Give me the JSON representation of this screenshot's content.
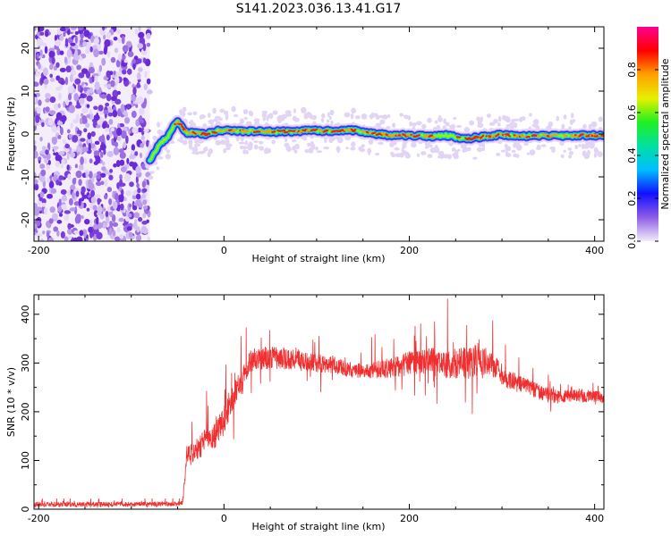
{
  "title": "S141.2023.036.13.41.G17",
  "chart_data": [
    {
      "type": "heatmap",
      "name": "spectrogram",
      "xlabel": "Height of straight line (km)",
      "ylabel": "Frequency (Hz)",
      "xlim": [
        -205,
        410
      ],
      "ylim": [
        -25,
        25
      ],
      "xticks": [
        -200,
        0,
        200,
        400
      ],
      "yticks": [
        -20,
        -10,
        0,
        10,
        20
      ],
      "grid": false,
      "noise_region_x": [
        -205,
        -80
      ],
      "signal_track": {
        "x": [
          -80,
          -75,
          -70,
          -65,
          -60,
          -55,
          -50,
          -45,
          -40,
          -30,
          -20,
          -10,
          0,
          20,
          40,
          60,
          80,
          100,
          120,
          140,
          160,
          180,
          200,
          220,
          240,
          260,
          280,
          300,
          320,
          340,
          360,
          380,
          400,
          410
        ],
        "y": [
          -6,
          -4.5,
          -2.5,
          -1.5,
          -0.5,
          1.5,
          3,
          1.5,
          0.3,
          0.2,
          0,
          0.5,
          1,
          0.7,
          0.6,
          0.5,
          0.7,
          0.8,
          0.6,
          0.9,
          0.2,
          -0.4,
          -0.3,
          -0.6,
          -0.3,
          -1.2,
          -0.6,
          -0.2,
          -0.6,
          -0.4,
          -0.5,
          -0.4,
          -0.3,
          -0.2
        ]
      },
      "colorbar": {
        "label": "Normalized spectral amplitude",
        "ticks": [
          0.0,
          0.2,
          0.4,
          0.6,
          0.8
        ],
        "range": [
          0,
          1
        ],
        "colors": [
          "#f2ecf9",
          "#8e5de6",
          "#1010ff",
          "#00bfff",
          "#00e0a0",
          "#20f020",
          "#e8f000",
          "#ffa000",
          "#ff0000",
          "#ff0090"
        ]
      }
    },
    {
      "type": "line",
      "name": "snr",
      "xlabel": "Height of straight line (km)",
      "ylabel": "SNR (10 * v/v)",
      "xlim": [
        -205,
        410
      ],
      "ylim": [
        0,
        440
      ],
      "xticks": [
        -200,
        0,
        200,
        400
      ],
      "yticks": [
        0,
        100,
        200,
        300,
        400
      ],
      "grid": false,
      "color": "#f03030",
      "envelope": {
        "x": [
          -205,
          -160,
          -120,
          -80,
          -45,
          -42,
          -40,
          -35,
          -30,
          -25,
          -20,
          -15,
          -10,
          -5,
          0,
          5,
          10,
          15,
          20,
          25,
          30,
          40,
          60,
          80,
          100,
          120,
          140,
          160,
          180,
          200,
          220,
          240,
          260,
          280,
          295,
          300,
          310,
          320,
          330,
          340,
          360,
          380,
          400,
          410
        ],
        "y": [
          10,
          10,
          10,
          10,
          12,
          60,
          120,
          110,
          120,
          130,
          150,
          140,
          150,
          170,
          180,
          210,
          230,
          250,
          265,
          290,
          305,
          310,
          310,
          305,
          300,
          295,
          285,
          285,
          290,
          300,
          305,
          300,
          300,
          305,
          290,
          270,
          265,
          255,
          250,
          240,
          230,
          235,
          230,
          230
        ]
      },
      "noise_amplitude": {
        "x": [
          -205,
          -45,
          -40,
          0,
          30,
          150,
          200,
          270,
          300,
          350,
          410
        ],
        "y": [
          5,
          5,
          20,
          30,
          25,
          15,
          25,
          35,
          20,
          15,
          12
        ]
      }
    }
  ]
}
